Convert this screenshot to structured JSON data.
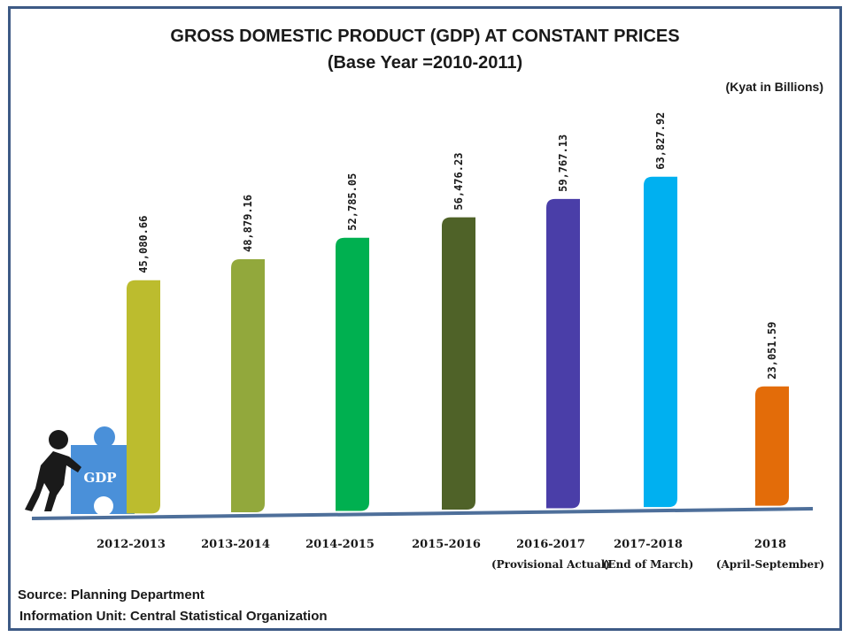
{
  "chart_data": {
    "type": "bar",
    "title": "GROSS DOMESTIC  PRODUCT (GDP) AT CONSTANT PRICES",
    "subtitle": "(Base Year =2010-2011)",
    "unit": "(Kyat in Billions)",
    "categories": [
      "2012-2013",
      "2013-2014",
      "2014-2015",
      "2015-2016",
      "2016-2017",
      "2017-2018",
      "2018"
    ],
    "category_notes": [
      "",
      "",
      "",
      "",
      "(Provisional Actual)",
      "(End of March)",
      "(April-September)"
    ],
    "values": [
      45080.66,
      48879.16,
      52785.05,
      56476.23,
      59767.13,
      63827.92,
      23051.59
    ],
    "value_labels": [
      "45,080.66",
      "48,879.16",
      "52,785.05",
      "56,476.23",
      "59,767.13",
      "63,827.92",
      "23,051.59"
    ],
    "colors": [
      "#bcbc2e",
      "#92a83c",
      "#00b050",
      "#4f6228",
      "#4a3ea8",
      "#00b0f0",
      "#e36c09"
    ],
    "grid": false,
    "legend": "none"
  },
  "illustration": {
    "label": "GDP",
    "icon": "person-pushing-puzzle-icon"
  },
  "source": {
    "line1": "Source:  Planning Department",
    "line2": "Information Unit:  Central Statistical Organization"
  }
}
